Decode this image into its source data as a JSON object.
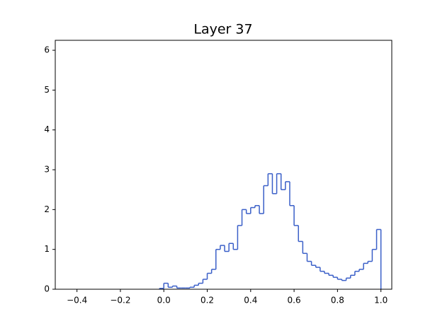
{
  "chart_data": {
    "type": "histogram",
    "title": "Layer 37",
    "color": "#3a5fc8",
    "bins": [
      -0.02,
      0.0,
      0.02,
      0.04,
      0.06,
      0.08,
      0.1,
      0.12,
      0.14,
      0.16,
      0.18,
      0.2,
      0.22,
      0.24,
      0.26,
      0.28,
      0.3,
      0.32,
      0.34,
      0.36,
      0.38,
      0.4,
      0.42,
      0.44,
      0.46,
      0.48,
      0.5,
      0.52,
      0.54,
      0.56,
      0.58,
      0.6,
      0.62,
      0.64,
      0.66,
      0.68,
      0.7,
      0.72,
      0.74,
      0.76,
      0.78,
      0.8,
      0.82,
      0.84,
      0.86,
      0.88,
      0.9,
      0.92,
      0.94,
      0.96,
      0.98,
      1.0
    ],
    "values": [
      0.02,
      0.15,
      0.05,
      0.08,
      0.03,
      0.03,
      0.03,
      0.05,
      0.1,
      0.15,
      0.25,
      0.4,
      0.5,
      1.0,
      1.1,
      0.95,
      1.15,
      1.0,
      1.6,
      2.0,
      1.9,
      2.05,
      2.1,
      1.9,
      2.6,
      2.9,
      2.4,
      2.9,
      2.5,
      2.7,
      2.1,
      1.6,
      1.2,
      0.9,
      0.7,
      0.6,
      0.55,
      0.45,
      0.4,
      0.35,
      0.3,
      0.25,
      0.22,
      0.28,
      0.35,
      0.45,
      0.5,
      0.65,
      0.7,
      1.0,
      1.5
    ],
    "xlim": [
      -0.5,
      1.05
    ],
    "ylim": [
      0,
      6.25
    ],
    "xticks": [
      {
        "value": -0.4,
        "label": "−0.4"
      },
      {
        "value": -0.2,
        "label": "−0.2"
      },
      {
        "value": 0.0,
        "label": "0.0"
      },
      0.2,
      0.4,
      0.6,
      0.8,
      {
        "value": 1.0,
        "label": "1.0"
      }
    ],
    "yticks": [
      0,
      1,
      2,
      3,
      4,
      5,
      6
    ]
  }
}
